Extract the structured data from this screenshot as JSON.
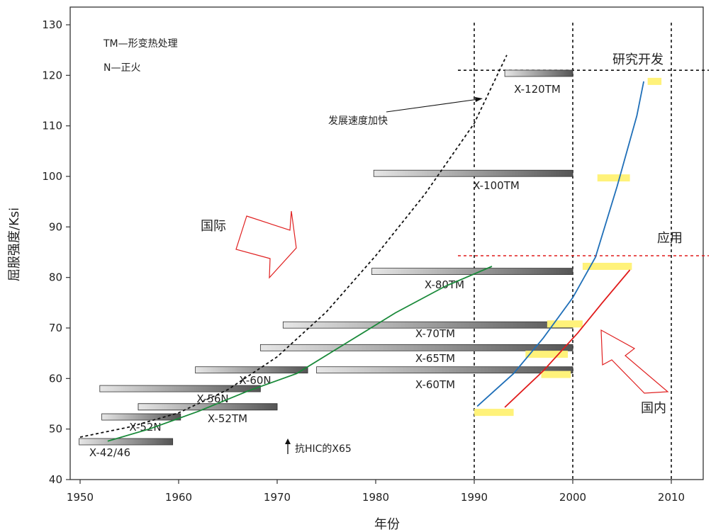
{
  "chart_data": {
    "type": "bar",
    "title": "",
    "xlabel": "年份",
    "ylabel": "屈服强度/Ksi",
    "xlim": [
      1950,
      2013
    ],
    "ylim": [
      40,
      132
    ],
    "x_ticks": [
      1950,
      1960,
      1970,
      1980,
      1990,
      2000,
      2010
    ],
    "y_ticks": [
      40,
      50,
      60,
      70,
      80,
      90,
      100,
      110,
      120,
      130
    ],
    "grades": [
      {
        "label": "X-42/46",
        "start": 1949.9,
        "end": 1959.4,
        "strength": 47.5
      },
      {
        "label": "X-52N",
        "start": 1952.2,
        "end": 1960.2,
        "strength": 52.4
      },
      {
        "label": "X-56N",
        "start": 1955.9,
        "end": 1970.0,
        "strength": 54.4
      },
      {
        "label": "X-52TM",
        "start": 1955.9,
        "end": 1970.0,
        "strength": 54.4
      },
      {
        "label": "X-60N",
        "start": 1952.0,
        "end": 1968.3,
        "strength": 58.0
      },
      {
        "label": "X-60N",
        "start": 1961.7,
        "end": 1973.1,
        "strength": 61.7
      },
      {
        "label": "X-60TM",
        "start": 1974.0,
        "end": 2000.0,
        "strength": 61.7
      },
      {
        "label": "X-65TM",
        "start": 1968.3,
        "end": 2000.0,
        "strength": 66.1
      },
      {
        "label": "X-70TM",
        "start": 1970.6,
        "end": 2000.0,
        "strength": 70.6
      },
      {
        "label": "X-80TM",
        "start": 1979.6,
        "end": 2000.0,
        "strength": 81.2
      },
      {
        "label": "X-100TM",
        "start": 1979.8,
        "end": 2000.0,
        "strength": 100.6
      },
      {
        "label": "X-120TM",
        "start": 1993.1,
        "end": 2000.0,
        "strength": 120.4
      }
    ],
    "domestic_points": [
      {
        "start": 1990.0,
        "end": 1994.0,
        "strength": 53.3
      },
      {
        "start": 1996.8,
        "end": 1999.8,
        "strength": 60.8
      },
      {
        "start": 1995.2,
        "end": 1999.5,
        "strength": 64.8
      },
      {
        "start": 1997.4,
        "end": 2001.0,
        "strength": 70.8
      },
      {
        "start": 2001.0,
        "end": 2006.0,
        "strength": 82.2
      },
      {
        "start": 2002.5,
        "end": 2005.8,
        "strength": 99.7
      },
      {
        "start": 2007.6,
        "end": 2009.0,
        "strength": 118.8
      }
    ],
    "lines": [
      {
        "color": "#1a8a3a",
        "points": [
          [
            1952.8,
            47.6
          ],
          [
            1957,
            50
          ],
          [
            1962,
            53.5
          ],
          [
            1967,
            57.5
          ],
          [
            1972,
            61
          ],
          [
            1977,
            67
          ],
          [
            1982,
            73
          ],
          [
            1987,
            78.2
          ],
          [
            1991.8,
            82.2
          ]
        ]
      },
      {
        "color": "#1f6fb8",
        "points": [
          [
            1990.3,
            54.5
          ],
          [
            1994,
            61
          ],
          [
            1997,
            68
          ],
          [
            2000,
            76
          ],
          [
            2002.3,
            84
          ],
          [
            2004.5,
            98
          ],
          [
            2006.5,
            112
          ],
          [
            2007.2,
            118.8
          ]
        ]
      },
      {
        "color": "#e01b1b",
        "points": [
          [
            1993.1,
            54.3
          ],
          [
            1997,
            61.5
          ],
          [
            2000.5,
            69
          ],
          [
            2003,
            75
          ],
          [
            2005.8,
            81.5
          ]
        ]
      },
      {
        "color": "#111111",
        "dashed": true,
        "points": [
          [
            1950,
            48.4
          ],
          [
            1955,
            50.4
          ],
          [
            1960,
            53.2
          ],
          [
            1965,
            57.8
          ],
          [
            1970,
            64.3
          ],
          [
            1975,
            73.2
          ],
          [
            1980,
            84.3
          ],
          [
            1985,
            96.5
          ],
          [
            1990,
            110.5
          ],
          [
            1993.3,
            124
          ]
        ]
      }
    ],
    "vertical_lines": [
      1990,
      2000,
      2010
    ],
    "research_level": 121,
    "application_level": 84.3,
    "annotations": {
      "legend_tm": "TM—形变热处理",
      "legend_n": "N—正火",
      "research": "研究开发",
      "application": "应用",
      "speed": "发展速度加快",
      "international": "国际",
      "domestic": "国内",
      "hic": "抗HIC的X65"
    }
  }
}
